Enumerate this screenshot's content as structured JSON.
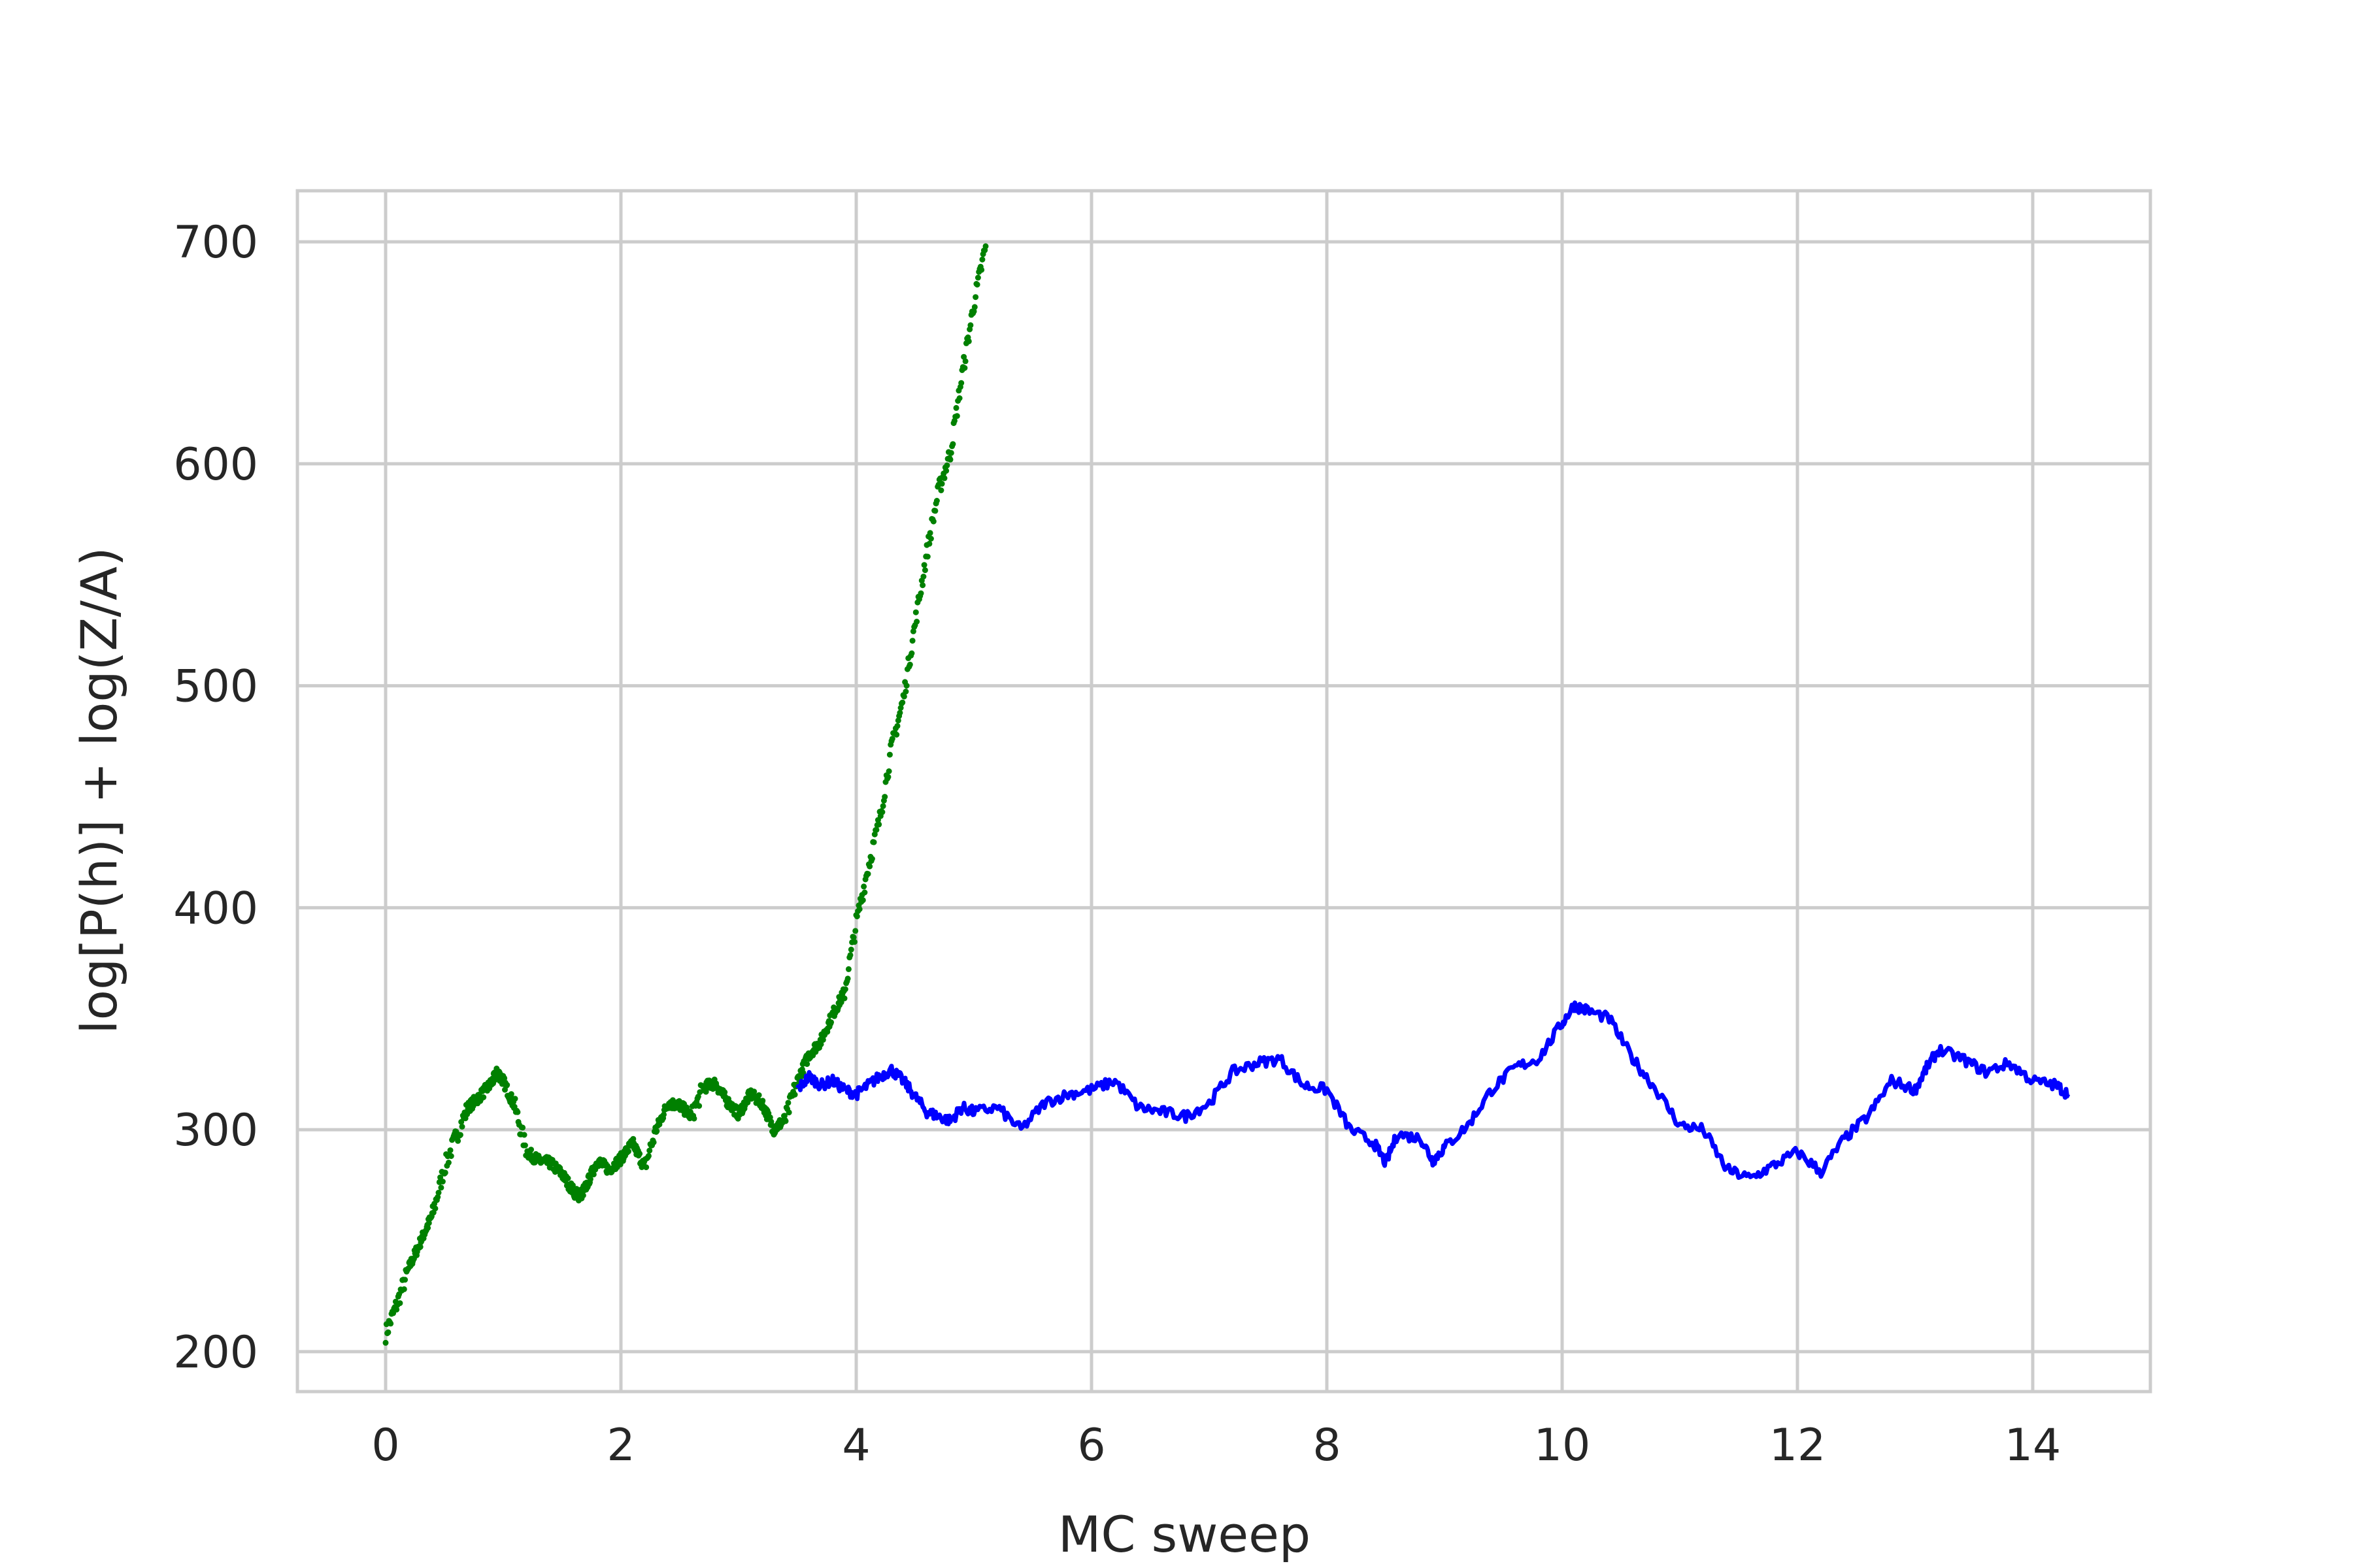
{
  "chart_data": {
    "type": "scatter",
    "title": "",
    "xlabel": "MC sweep",
    "ylabel": "log[P(h)] + log(Z/A)",
    "xlim": [
      -0.75,
      15.0
    ],
    "ylim": [
      182,
      723
    ],
    "x_ticks": [
      0,
      2,
      4,
      6,
      8,
      10,
      12,
      14
    ],
    "y_ticks": [
      200,
      300,
      400,
      500,
      600,
      700
    ],
    "grid": true,
    "legend": "none",
    "series": [
      {
        "color": "#008000",
        "style": "points",
        "x": [
          0.0,
          0.1,
          0.2,
          0.3,
          0.4,
          0.5,
          0.6,
          0.7,
          0.8,
          0.9,
          0.95,
          1.0,
          1.1,
          1.2,
          1.3,
          1.4,
          1.5,
          1.6,
          1.65,
          1.7,
          1.8,
          1.9,
          2.0,
          2.1,
          2.2,
          2.3,
          2.4,
          2.5,
          2.6,
          2.7,
          2.8,
          2.9,
          3.0,
          3.1,
          3.2,
          3.3,
          3.4,
          3.5,
          3.6,
          3.7,
          3.8,
          3.9,
          4.0,
          4.1,
          4.2,
          4.3,
          4.4,
          4.5,
          4.6,
          4.7,
          4.8,
          4.9,
          5.0,
          5.1
        ],
        "y": [
          208,
          222,
          238,
          250,
          262,
          283,
          297,
          310,
          315,
          321,
          326,
          322,
          310,
          290,
          286,
          285,
          280,
          272,
          270,
          274,
          286,
          282,
          287,
          294,
          283,
          300,
          312,
          311,
          306,
          319,
          321,
          313,
          307,
          316,
          312,
          300,
          305,
          322,
          334,
          340,
          352,
          362,
          393,
          418,
          440,
          472,
          494,
          528,
          560,
          588,
          605,
          640,
          672,
          698
        ]
      },
      {
        "color": "#0000ff",
        "style": "line",
        "x": [
          3.5,
          3.6,
          3.7,
          3.8,
          3.9,
          4.0,
          4.1,
          4.2,
          4.3,
          4.4,
          4.5,
          4.6,
          4.7,
          4.8,
          4.9,
          5.0,
          5.2,
          5.4,
          5.6,
          5.8,
          6.0,
          6.2,
          6.4,
          6.6,
          6.8,
          7.0,
          7.2,
          7.4,
          7.6,
          7.8,
          8.0,
          8.2,
          8.4,
          8.5,
          8.6,
          8.8,
          8.9,
          9.0,
          9.2,
          9.4,
          9.6,
          9.8,
          10.0,
          10.1,
          10.2,
          10.4,
          10.6,
          10.8,
          11.0,
          11.2,
          11.4,
          11.6,
          11.8,
          12.0,
          12.2,
          12.4,
          12.6,
          12.8,
          13.0,
          13.1,
          13.2,
          13.4,
          13.6,
          13.8,
          14.0,
          14.2,
          14.3
        ],
        "y": [
          318,
          324,
          320,
          322,
          318,
          316,
          320,
          324,
          327,
          322,
          315,
          308,
          306,
          304,
          310,
          308,
          310,
          300,
          312,
          316,
          318,
          322,
          310,
          308,
          306,
          312,
          326,
          330,
          332,
          320,
          318,
          300,
          294,
          285,
          298,
          296,
          286,
          292,
          302,
          318,
          328,
          332,
          348,
          356,
          354,
          350,
          332,
          318,
          302,
          300,
          282,
          278,
          284,
          290,
          281,
          296,
          306,
          322,
          318,
          328,
          336,
          332,
          326,
          330,
          322,
          320,
          316
        ]
      }
    ]
  }
}
